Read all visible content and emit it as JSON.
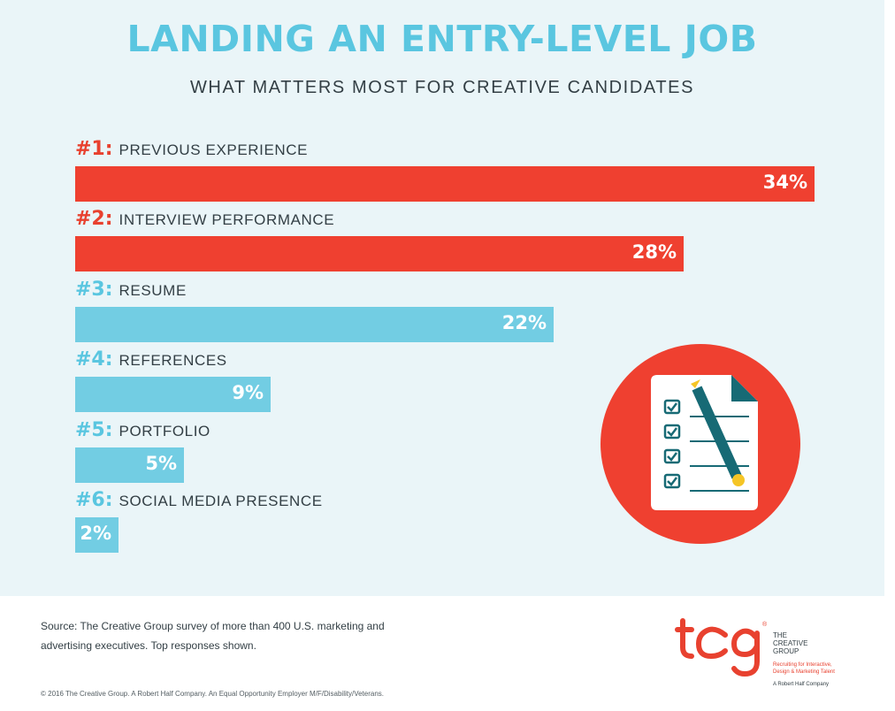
{
  "header": {
    "title": "LANDING AN ENTRY-LEVEL JOB",
    "subtitle": "WHAT MATTERS MOST FOR CREATIVE CANDIDATES"
  },
  "chart_data": {
    "type": "bar",
    "orientation": "horizontal",
    "title": "LANDING AN ENTRY-LEVEL JOB",
    "subtitle": "WHAT MATTERS MOST FOR CREATIVE CANDIDATES",
    "ranks": [
      "#1:",
      "#2:",
      "#3:",
      "#4:",
      "#5:",
      "#6:"
    ],
    "categories": [
      "PREVIOUS EXPERIENCE",
      "INTERVIEW PERFORMANCE",
      "RESUME",
      "REFERENCES",
      "PORTFOLIO",
      "SOCIAL MEDIA PRESENCE"
    ],
    "values": [
      34,
      28,
      22,
      9,
      5,
      2
    ],
    "value_labels": [
      "34%",
      "28%",
      "22%",
      "9%",
      "5%",
      "2%"
    ],
    "unit": "%",
    "grid": false,
    "legend": "none",
    "bar_colors": [
      "#ef4030",
      "#ef4030",
      "#72cde3",
      "#72cde3",
      "#72cde3",
      "#72cde3"
    ],
    "rank_colors": [
      "#e8412f",
      "#e8412f",
      "#5ac6e0",
      "#5ac6e0",
      "#5ac6e0",
      "#5ac6e0"
    ]
  },
  "illustration": {
    "icon": "checklist-clipboard-pencil-icon",
    "colors": {
      "circle": "#ef4030",
      "paper": "#ffffff",
      "fold": "#176a75",
      "pencil": "#176a75",
      "pencil_tip": "#f5c526",
      "checks": "#176a75"
    }
  },
  "footer": {
    "source": "Source: The Creative Group survey of more than 400 U.S. marketing and advertising executives. Top responses shown.",
    "copyright": "© 2016 The Creative Group. A Robert Half Company. An Equal Opportunity Employer M/F/Disability/Veterans."
  },
  "logo": {
    "mark": "tcg",
    "registered": "®",
    "name_line1": "THE",
    "name_line2": "CREATIVE",
    "name_line3": "GROUP",
    "tagline_line1": "Recruiting for Interactive,",
    "tagline_line2": "Design & Marketing Talent",
    "parent": "A Robert Half Company",
    "color": "#e8412f"
  },
  "colors": {
    "background_panel": "#eaf5f8",
    "title": "#5ac6e0",
    "text": "#333f45"
  }
}
